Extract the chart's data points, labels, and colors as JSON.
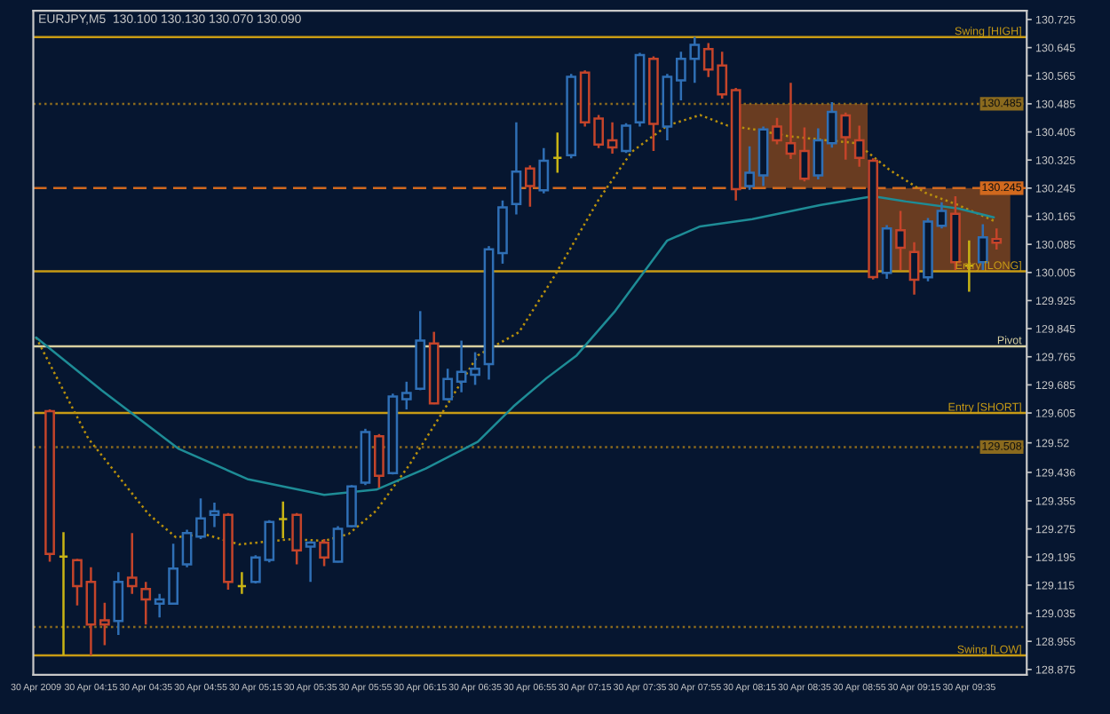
{
  "chart_data": {
    "type": "candlestick",
    "title": "EURJPY,M5  130.100 130.130 130.070 130.090",
    "x": [
      "2009-04-30T04:00",
      "2009-04-30T04:05",
      "2009-04-30T04:10",
      "2009-04-30T04:15",
      "2009-04-30T04:20",
      "2009-04-30T04:25",
      "2009-04-30T04:30",
      "2009-04-30T04:35",
      "2009-04-30T04:40",
      "2009-04-30T04:45",
      "2009-04-30T04:50",
      "2009-04-30T04:55",
      "2009-04-30T05:00",
      "2009-04-30T05:05",
      "2009-04-30T05:10",
      "2009-04-30T05:15",
      "2009-04-30T05:20",
      "2009-04-30T05:25",
      "2009-04-30T05:30",
      "2009-04-30T05:35",
      "2009-04-30T05:40",
      "2009-04-30T05:45",
      "2009-04-30T05:50",
      "2009-04-30T05:55",
      "2009-04-30T06:00",
      "2009-04-30T06:05",
      "2009-04-30T06:10",
      "2009-04-30T06:15",
      "2009-04-30T06:20",
      "2009-04-30T06:25",
      "2009-04-30T06:30",
      "2009-04-30T06:35",
      "2009-04-30T06:40",
      "2009-04-30T06:45",
      "2009-04-30T06:50",
      "2009-04-30T06:55",
      "2009-04-30T07:00",
      "2009-04-30T07:05",
      "2009-04-30T07:10",
      "2009-04-30T07:15",
      "2009-04-30T07:20",
      "2009-04-30T07:25",
      "2009-04-30T07:30",
      "2009-04-30T07:35",
      "2009-04-30T07:40",
      "2009-04-30T07:45",
      "2009-04-30T07:50",
      "2009-04-30T07:55",
      "2009-04-30T08:00",
      "2009-04-30T08:05",
      "2009-04-30T08:10",
      "2009-04-30T08:15",
      "2009-04-30T08:20",
      "2009-04-30T08:25",
      "2009-04-30T08:30",
      "2009-04-30T08:35",
      "2009-04-30T08:40",
      "2009-04-30T08:45",
      "2009-04-30T08:50",
      "2009-04-30T08:55",
      "2009-04-30T09:00",
      "2009-04-30T09:05",
      "2009-04-30T09:10",
      "2009-04-30T09:15",
      "2009-04-30T09:20",
      "2009-04-30T09:25",
      "2009-04-30T09:30",
      "2009-04-30T09:35",
      "2009-04-30T09:40",
      "2009-04-30T09:45"
    ],
    "ohlc": [
      [
        129.61,
        129.615,
        129.182,
        129.204
      ],
      [
        129.196,
        129.266,
        128.915,
        129.196
      ],
      [
        129.186,
        129.19,
        129.057,
        129.112
      ],
      [
        129.124,
        129.166,
        128.915,
        129.003
      ],
      [
        129.015,
        129.065,
        128.944,
        129.003
      ],
      [
        129.013,
        129.152,
        128.973,
        129.124
      ],
      [
        129.136,
        129.263,
        129.09,
        129.112
      ],
      [
        129.104,
        129.124,
        129.003,
        129.074
      ],
      [
        129.062,
        129.09,
        129.023,
        129.074
      ],
      [
        129.062,
        129.233,
        129.062,
        129.162
      ],
      [
        129.174,
        129.273,
        129.166,
        129.263
      ],
      [
        129.253,
        129.362,
        129.246,
        129.305
      ],
      [
        129.315,
        129.35,
        129.28,
        129.325
      ],
      [
        129.315,
        129.32,
        129.102,
        129.124
      ],
      [
        129.112,
        129.152,
        129.09,
        129.112
      ],
      [
        129.124,
        129.2,
        129.12,
        129.194
      ],
      [
        129.187,
        129.3,
        129.18,
        129.295
      ],
      [
        129.303,
        129.353,
        129.249,
        129.303
      ],
      [
        129.315,
        129.32,
        129.174,
        129.214
      ],
      [
        129.225,
        129.24,
        129.124,
        129.236
      ],
      [
        129.236,
        129.246,
        129.169,
        129.194
      ],
      [
        129.182,
        129.283,
        129.18,
        129.275
      ],
      [
        129.283,
        129.4,
        129.28,
        129.396
      ],
      [
        129.407,
        129.56,
        129.4,
        129.551
      ],
      [
        129.539,
        129.545,
        129.392,
        129.426
      ],
      [
        129.434,
        129.66,
        129.43,
        129.652
      ],
      [
        129.644,
        129.694,
        129.615,
        129.662
      ],
      [
        129.674,
        129.895,
        129.67,
        129.811
      ],
      [
        129.803,
        129.836,
        129.63,
        129.632
      ],
      [
        129.644,
        129.731,
        129.64,
        129.702
      ],
      [
        129.694,
        129.811,
        129.664,
        129.722
      ],
      [
        129.714,
        129.778,
        129.685,
        129.731
      ],
      [
        129.744,
        130.08,
        129.7,
        130.071
      ],
      [
        130.06,
        130.21,
        130.03,
        130.19
      ],
      [
        130.2,
        130.432,
        130.17,
        130.292
      ],
      [
        130.301,
        130.31,
        130.192,
        130.251
      ],
      [
        130.239,
        130.359,
        130.23,
        130.323
      ],
      [
        130.331,
        130.403,
        130.289,
        130.331
      ],
      [
        130.339,
        130.57,
        130.33,
        130.562
      ],
      [
        130.574,
        130.58,
        130.42,
        130.432
      ],
      [
        130.443,
        130.453,
        130.359,
        130.369
      ],
      [
        130.381,
        130.432,
        130.343,
        130.361
      ],
      [
        130.351,
        130.43,
        130.345,
        130.423
      ],
      [
        130.432,
        130.63,
        130.42,
        130.624
      ],
      [
        130.613,
        130.62,
        130.351,
        130.428
      ],
      [
        130.42,
        130.57,
        130.381,
        130.562
      ],
      [
        130.552,
        130.633,
        130.495,
        130.613
      ],
      [
        130.613,
        130.675,
        130.545,
        130.653
      ],
      [
        130.641,
        130.658,
        130.561,
        130.583
      ],
      [
        130.594,
        130.633,
        130.5,
        130.512
      ],
      [
        130.524,
        130.53,
        130.21,
        130.242
      ],
      [
        130.251,
        130.364,
        130.24,
        130.289
      ],
      [
        130.281,
        130.42,
        130.251,
        130.412
      ],
      [
        130.42,
        130.445,
        130.37,
        130.381
      ],
      [
        130.373,
        130.545,
        130.328,
        130.343
      ],
      [
        130.351,
        130.418,
        130.264,
        130.272
      ],
      [
        130.281,
        130.415,
        130.27,
        130.381
      ],
      [
        130.373,
        130.49,
        130.36,
        130.462
      ],
      [
        130.452,
        130.46,
        130.326,
        130.39
      ],
      [
        130.381,
        130.423,
        130.306,
        130.331
      ],
      [
        130.323,
        130.33,
        129.985,
        129.992
      ],
      [
        130.004,
        130.14,
        129.987,
        130.13
      ],
      [
        130.125,
        130.18,
        130.012,
        130.075
      ],
      [
        130.063,
        130.091,
        129.942,
        129.984
      ],
      [
        129.991,
        130.16,
        129.98,
        130.15
      ],
      [
        130.138,
        130.205,
        130.13,
        130.18
      ],
      [
        130.172,
        130.222,
        130.012,
        130.034
      ],
      [
        130.024,
        130.096,
        129.95,
        130.024
      ],
      [
        130.034,
        130.142,
        130.012,
        130.105
      ],
      [
        130.1,
        130.13,
        130.07,
        130.09
      ]
    ],
    "colors": [
      "#c4442a",
      "#c8b414",
      "#c4442a",
      "#c4442a",
      "#c4442a",
      "#2f6fb5",
      "#c4442a",
      "#c4442a",
      "#2f6fb5",
      "#2f6fb5",
      "#2f6fb5",
      "#2f6fb5",
      "#2f6fb5",
      "#c4442a",
      "#c8b414",
      "#2f6fb5",
      "#2f6fb5",
      "#c8b414",
      "#c4442a",
      "#2f6fb5",
      "#c4442a",
      "#2f6fb5",
      "#2f6fb5",
      "#2f6fb5",
      "#c4442a",
      "#2f6fb5",
      "#2f6fb5",
      "#2f6fb5",
      "#c4442a",
      "#2f6fb5",
      "#2f6fb5",
      "#2f6fb5",
      "#2f6fb5",
      "#2f6fb5",
      "#2f6fb5",
      "#c4442a",
      "#2f6fb5",
      "#c8b414",
      "#2f6fb5",
      "#c4442a",
      "#c4442a",
      "#c4442a",
      "#2f6fb5",
      "#2f6fb5",
      "#c4442a",
      "#2f6fb5",
      "#2f6fb5",
      "#2f6fb5",
      "#c4442a",
      "#c4442a",
      "#c4442a",
      "#2f6fb5",
      "#2f6fb5",
      "#c4442a",
      "#c4442a",
      "#c4442a",
      "#2f6fb5",
      "#2f6fb5",
      "#c4442a",
      "#c4442a",
      "#c4442a",
      "#2f6fb5",
      "#c4442a",
      "#c4442a",
      "#2f6fb5",
      "#2f6fb5",
      "#c4442a",
      "#c8b414",
      "#2f6fb5",
      "#c4442a"
    ],
    "series": [
      {
        "type": "bar",
        "color": "#8b4a1c",
        "x": [
          "2009-04-30T08:34",
          "2009-04-30T09:26"
        ],
        "base": [
          130.245,
          130.008
        ],
        "values": [
          0.24,
          0.237
        ]
      },
      {
        "type": "line",
        "color": "#b8900c",
        "line_style": "dotted",
        "x": [
          "2009-04-30T03:55",
          "2009-04-30T04:14",
          "2009-04-30T04:36",
          "2009-04-30T04:46",
          "2009-04-30T04:56",
          "2009-04-30T05:09",
          "2009-04-30T05:28",
          "2009-04-30T05:40",
          "2009-04-30T05:49",
          "2009-04-30T05:59",
          "2009-04-30T06:11",
          "2009-04-30T06:24",
          "2009-04-30T06:36",
          "2009-04-30T06:51",
          "2009-04-30T07:04",
          "2009-04-30T07:20",
          "2009-04-30T07:32",
          "2009-04-30T07:45",
          "2009-04-30T07:57",
          "2009-04-30T08:07",
          "2009-04-30T08:16",
          "2009-04-30T08:29",
          "2009-04-30T08:41",
          "2009-04-30T08:54",
          "2009-04-30T09:06",
          "2009-04-30T09:19",
          "2009-04-30T09:31",
          "2009-04-30T09:44"
        ],
        "values": [
          129.82,
          129.533,
          129.317,
          129.251,
          129.261,
          129.231,
          129.246,
          129.241,
          129.261,
          129.327,
          129.457,
          129.618,
          129.769,
          129.835,
          129.996,
          130.212,
          130.348,
          130.423,
          130.453,
          130.423,
          130.413,
          130.393,
          130.383,
          130.373,
          130.297,
          130.232,
          130.197,
          130.152
        ]
      },
      {
        "type": "line",
        "color": "#1e8c96",
        "line_style": "solid",
        "x": [
          "2009-04-30T03:55",
          "2009-04-30T04:19",
          "2009-04-30T04:47",
          "2009-04-30T05:12",
          "2009-04-30T05:40",
          "2009-04-30T05:59",
          "2009-04-30T06:17",
          "2009-04-30T06:36",
          "2009-04-30T06:49",
          "2009-04-30T07:01",
          "2009-04-30T07:12",
          "2009-04-30T07:26",
          "2009-04-30T07:45",
          "2009-04-30T07:57",
          "2009-04-30T08:16",
          "2009-04-30T08:41",
          "2009-04-30T09:00",
          "2009-04-30T09:12",
          "2009-04-30T09:31",
          "2009-04-30T09:44"
        ],
        "values": [
          129.82,
          129.669,
          129.503,
          129.417,
          129.372,
          129.387,
          129.447,
          129.523,
          129.624,
          129.704,
          129.769,
          129.895,
          130.096,
          130.136,
          130.157,
          130.197,
          130.222,
          130.207,
          130.187,
          130.162
        ]
      }
    ],
    "ref_lines": [
      {
        "axis": "y",
        "value": 130.675,
        "label": "Swing [HIGH]",
        "color": "#c89b14",
        "line_style": "solid"
      },
      {
        "axis": "y",
        "value": 130.485,
        "label": "130.485",
        "color": "#8a6a1e",
        "line_style": "dotted"
      },
      {
        "axis": "y",
        "value": 130.245,
        "label": "130.245",
        "color": "#d2691e",
        "line_style": "dashed"
      },
      {
        "axis": "y",
        "value": 130.008,
        "label": "Entry [LONG]",
        "color": "#c89b14",
        "line_style": "solid"
      },
      {
        "axis": "y",
        "value": 129.795,
        "label": "Pivot",
        "color": "#d8d0a0",
        "line_style": "solid"
      },
      {
        "axis": "y",
        "value": 129.605,
        "label": "Entry [SHORT]",
        "color": "#c89b14",
        "line_style": "solid"
      },
      {
        "axis": "y",
        "value": 129.508,
        "label": "129.508",
        "color": "#8a6a1e",
        "line_style": "dotted"
      },
      {
        "axis": "y",
        "value": 128.996,
        "color": "#8a6a1e",
        "line_style": "dotted"
      },
      {
        "axis": "y",
        "value": 128.915,
        "label": "Swing [LOW]",
        "color": "#c89b14",
        "line_style": "solid"
      }
    ],
    "xlim": [
      "2009-04-30T03:54",
      "2009-04-30T09:56"
    ],
    "xticks": [
      {
        "value": "2009-04-30T03:55",
        "label": "30 Apr 2009"
      },
      {
        "value": "2009-04-30T04:15",
        "label": "30 Apr 04:15"
      },
      {
        "value": "2009-04-30T04:35",
        "label": "30 Apr 04:35"
      },
      {
        "value": "2009-04-30T04:55",
        "label": "30 Apr 04:55"
      },
      {
        "value": "2009-04-30T05:15",
        "label": "30 Apr 05:15"
      },
      {
        "value": "2009-04-30T05:35",
        "label": "30 Apr 05:35"
      },
      {
        "value": "2009-04-30T05:55",
        "label": "30 Apr 05:55"
      },
      {
        "value": "2009-04-30T06:15",
        "label": "30 Apr 06:15"
      },
      {
        "value": "2009-04-30T06:35",
        "label": "30 Apr 06:35"
      },
      {
        "value": "2009-04-30T06:55",
        "label": "30 Apr 06:55"
      },
      {
        "value": "2009-04-30T07:15",
        "label": "30 Apr 07:15"
      },
      {
        "value": "2009-04-30T07:35",
        "label": "30 Apr 07:35"
      },
      {
        "value": "2009-04-30T07:55",
        "label": "30 Apr 07:55"
      },
      {
        "value": "2009-04-30T08:15",
        "label": "30 Apr 08:15"
      },
      {
        "value": "2009-04-30T08:35",
        "label": "30 Apr 08:35"
      },
      {
        "value": "2009-04-30T08:55",
        "label": "30 Apr 08:55"
      },
      {
        "value": "2009-04-30T09:15",
        "label": "30 Apr 09:15"
      },
      {
        "value": "2009-04-30T09:35",
        "label": "30 Apr 09:35"
      }
    ],
    "ylim": [
      128.86,
      130.75
    ],
    "yticks": [
      128.875,
      128.955,
      129.035,
      129.115,
      129.195,
      129.275,
      129.355,
      129.436,
      129.52,
      129.605,
      129.685,
      129.765,
      129.845,
      129.925,
      130.005,
      130.085,
      130.165,
      130.245,
      130.325,
      130.405,
      130.485,
      130.565,
      130.645,
      130.725
    ]
  }
}
